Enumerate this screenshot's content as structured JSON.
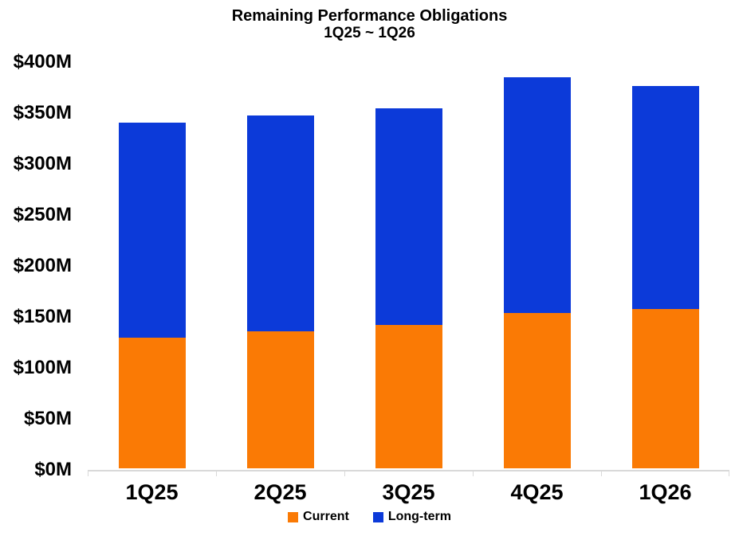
{
  "title": "Remaining Performance Obligations",
  "subtitle": "1Q25 ~ 1Q26",
  "colors": {
    "current": "#FA7A05",
    "long_term": "#0C3AD9",
    "axis_line": "#D9D9D9",
    "text": "#000000",
    "background": "#FFFFFF"
  },
  "legend": {
    "items": [
      {
        "label": "Current",
        "color": "#FA7A05"
      },
      {
        "label": "Long-term",
        "color": "#0C3AD9"
      }
    ],
    "position": "bottom"
  },
  "chart_data": {
    "type": "bar",
    "stacked": true,
    "title": "Remaining Performance Obligations",
    "subtitle": "1Q25 ~ 1Q26",
    "categories": [
      "1Q25",
      "2Q25",
      "3Q25",
      "4Q25",
      "1Q26"
    ],
    "series": [
      {
        "name": "Current",
        "color": "#FA7A05",
        "values": [
          128,
          134,
          141,
          152,
          156
        ]
      },
      {
        "name": "Long-term",
        "color": "#0C3AD9",
        "values": [
          211,
          212,
          212,
          232,
          219
        ]
      }
    ],
    "totals": [
      339,
      346,
      353,
      384,
      375
    ],
    "xlabel": "",
    "ylabel": "",
    "ylim": [
      0,
      400
    ],
    "y_tick_step": 50,
    "y_tick_labels": [
      "$400M",
      "$350M",
      "$300M",
      "$250M",
      "$200M",
      "$150M",
      "$100M",
      "$50M",
      "$0M"
    ],
    "grid": false,
    "legend_position": "bottom",
    "unit": "$M"
  }
}
